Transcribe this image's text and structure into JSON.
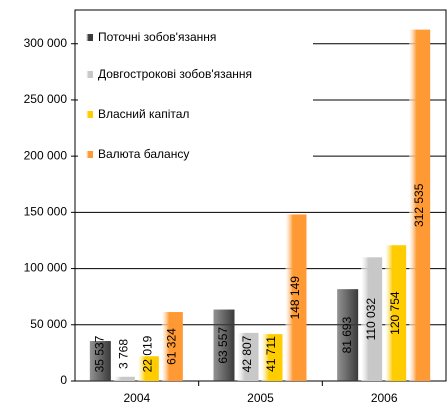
{
  "chart_data": {
    "type": "bar",
    "categories": [
      "2004",
      "2005",
      "2006"
    ],
    "series": [
      {
        "name": "Поточні зобов'язання",
        "color": "#3a3a3a",
        "values": [
          35537,
          63557,
          81693
        ],
        "value_labels": [
          "35 537",
          "63 557",
          "81 693"
        ]
      },
      {
        "name": "Довгострокові зобов'язання",
        "color": "#c8c8c8",
        "values": [
          3768,
          42807,
          110032
        ],
        "value_labels": [
          "3 768",
          "42 807",
          "110 032"
        ]
      },
      {
        "name": "Власний капітал",
        "color": "#ffcc00",
        "values": [
          22019,
          41711,
          120754
        ],
        "value_labels": [
          "22 019",
          "41 711",
          "120 754"
        ]
      },
      {
        "name": "Валюта балансу",
        "color": "#ff9933",
        "values": [
          61324,
          148149,
          312535
        ],
        "value_labels": [
          "61 324",
          "148 149",
          "312 535"
        ]
      }
    ],
    "ylim": [
      0,
      330000
    ],
    "yticks": [
      0,
      {
        "value": 50000,
        "label": "50 000"
      },
      {
        "value": 100000,
        "label": "100 000"
      },
      {
        "value": 150000,
        "label": "150 000"
      },
      {
        "value": 200000,
        "label": "200 000"
      },
      {
        "value": 250000,
        "label": "250 000"
      },
      {
        "value": 300000,
        "label": "300 000"
      }
    ],
    "grid": true
  }
}
